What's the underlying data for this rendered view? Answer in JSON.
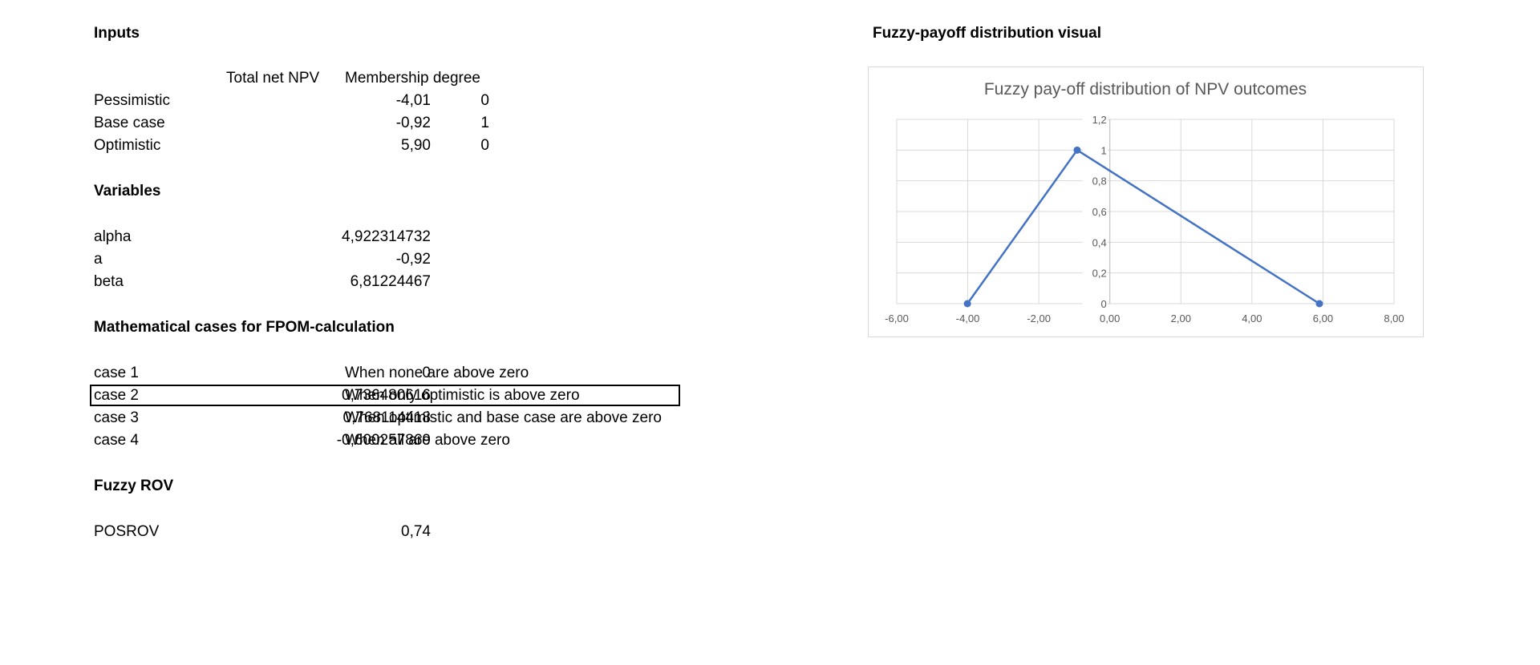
{
  "inputs": {
    "heading": "Inputs",
    "col_npv": "Total net NPV",
    "col_membership": "Membership degree",
    "rows": [
      {
        "label": "Pessimistic",
        "npv": "-4,01",
        "membership": "0"
      },
      {
        "label": "Base case",
        "npv": "-0,92",
        "membership": "1"
      },
      {
        "label": "Optimistic",
        "npv": "5,90",
        "membership": "0"
      }
    ]
  },
  "variables": {
    "heading": "Variables",
    "rows": [
      {
        "label": "alpha",
        "value": "4,922314732"
      },
      {
        "label": "a",
        "value": "-0,92"
      },
      {
        "label": "beta",
        "value": "6,81224467"
      }
    ]
  },
  "cases": {
    "heading": "Mathematical cases for FPOM-calculation",
    "rows": [
      {
        "label": "case 1",
        "value": "0",
        "desc": "When none are above zero"
      },
      {
        "label": "case 2",
        "value": "0,736480616",
        "desc": "When only optimistic is above zero"
      },
      {
        "label": "case 3",
        "value": "0,768114418",
        "desc": "When optimistic and base case are above zero"
      },
      {
        "label": "case 4",
        "value": "-0,600257869",
        "desc": "When all are above zero"
      }
    ]
  },
  "fuzzy_rov": {
    "heading": "Fuzzy ROV",
    "label": "POSROV",
    "value": "0,74"
  },
  "chart_section": {
    "heading": "Fuzzy-payoff distribution visual"
  },
  "chart_data": {
    "type": "scatter",
    "title": "Fuzzy pay-off distribution of NPV outcomes",
    "xlabel": "",
    "ylabel": "",
    "x": [
      -4.01,
      -0.92,
      5.9
    ],
    "y": [
      0,
      1,
      0
    ],
    "xlim": [
      -6,
      8
    ],
    "ylim": [
      0,
      1.2
    ],
    "x_ticks": [
      "-6,00",
      "-4,00",
      "-2,00",
      "0,00",
      "2,00",
      "4,00",
      "6,00",
      "8,00"
    ],
    "y_ticks": [
      "0",
      "0,2",
      "0,4",
      "0,6",
      "0,8",
      "1",
      "1,2"
    ],
    "lines_connect_points": true,
    "grid": true,
    "series_color": "#4472c4"
  }
}
